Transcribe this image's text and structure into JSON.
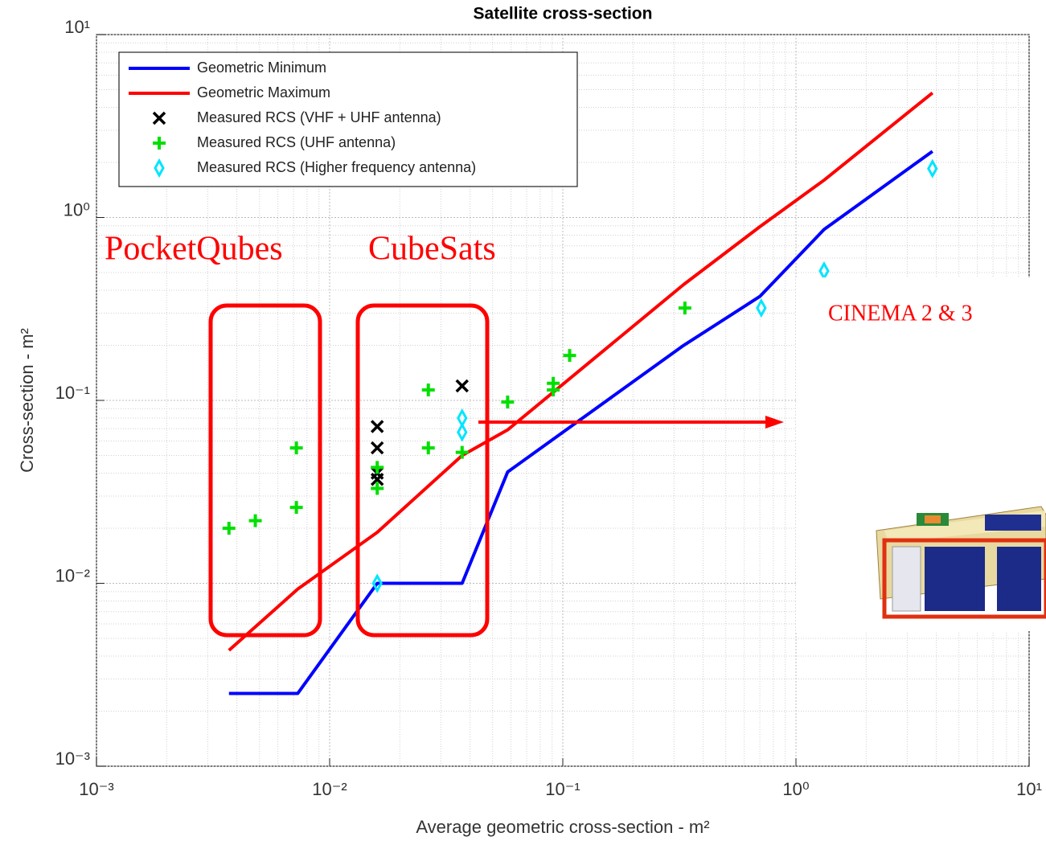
{
  "chart_data": {
    "type": "line-scatter",
    "title": "Satellite cross-section",
    "xlabel": "Average geometric cross-section - m²",
    "ylabel": "Cross-section - m²",
    "log_x": true,
    "log_y": true,
    "grid": true,
    "minor_grid": true,
    "legend": "upper left",
    "xlim": [
      0.001,
      10
    ],
    "ylim": [
      0.001,
      10
    ],
    "xticks": [
      {
        "value": 0.001,
        "label": "10⁻³"
      },
      {
        "value": 0.01,
        "label": "10⁻²"
      },
      {
        "value": 0.1,
        "label": "10⁻¹"
      },
      {
        "value": 1,
        "label": "10⁰"
      },
      {
        "value": 10,
        "label": "10¹"
      }
    ],
    "yticks": [
      {
        "value": 0.001,
        "label": "10⁻³"
      },
      {
        "value": 0.01,
        "label": "10⁻²"
      },
      {
        "value": 0.1,
        "label": "10⁻¹"
      },
      {
        "value": 1,
        "label": "10⁰"
      },
      {
        "value": 10,
        "label": "10¹"
      }
    ],
    "series": [
      {
        "name": "Geometric Minimum",
        "kind": "line",
        "color": "#0000ff",
        "x": [
          0.0037,
          0.0073,
          0.016,
          0.037,
          0.058,
          0.33,
          0.7,
          1.32,
          3.85
        ],
        "values": [
          0.0025,
          0.0025,
          0.01,
          0.01,
          0.0406,
          0.2,
          0.37,
          0.86,
          2.3
        ]
      },
      {
        "name": "Geometric Maximum",
        "kind": "line",
        "color": "#ff0000",
        "x": [
          0.0037,
          0.0073,
          0.016,
          0.037,
          0.058,
          0.33,
          0.7,
          1.32,
          3.85
        ],
        "values": [
          0.0043,
          0.0093,
          0.019,
          0.05,
          0.069,
          0.43,
          0.89,
          1.6,
          4.8
        ]
      },
      {
        "name": "Measured RCS (VHF + UHF antenna)",
        "kind": "x",
        "color": "#000000",
        "x": [
          0.016,
          0.016,
          0.016,
          0.016,
          0.037
        ],
        "values": [
          0.072,
          0.055,
          0.04,
          0.037,
          0.12
        ]
      },
      {
        "name": "Measured RCS (UHF antenna)",
        "kind": "plus",
        "color": "#00e000",
        "x": [
          0.0037,
          0.0048,
          0.0072,
          0.0072,
          0.016,
          0.016,
          0.0265,
          0.0265,
          0.037,
          0.058,
          0.091,
          0.091,
          0.107,
          0.334
        ],
        "values": [
          0.02,
          0.022,
          0.055,
          0.026,
          0.043,
          0.033,
          0.114,
          0.055,
          0.052,
          0.098,
          0.114,
          0.124,
          0.176,
          0.32
        ]
      },
      {
        "name": "Measured RCS (Higher frequency antenna)",
        "kind": "diamond",
        "color": "#00e5ff",
        "x": [
          0.016,
          0.037,
          0.037,
          0.71,
          1.32,
          3.85
        ],
        "values": [
          0.01,
          0.08,
          0.067,
          0.32,
          0.51,
          1.85
        ]
      }
    ],
    "annotations": [
      {
        "text": "PocketQubes"
      },
      {
        "text": "CubeSats"
      },
      {
        "text": "CINEMA 2 & 3"
      }
    ]
  }
}
